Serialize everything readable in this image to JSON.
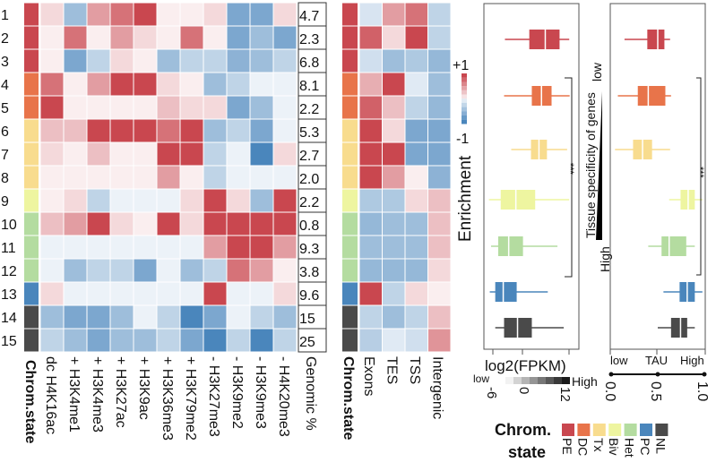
{
  "chart_data": [
    {
      "type": "heatmap",
      "row_labels": [
        "1",
        "2",
        "3",
        "4",
        "5",
        "6",
        "7",
        "8",
        "9",
        "10",
        "11",
        "12",
        "13",
        "14",
        "15"
      ],
      "row_states": [
        "PE",
        "PE",
        "PE",
        "DC",
        "DC",
        "Tx",
        "Tx",
        "Tx",
        "Biv",
        "Het",
        "Het",
        "Het",
        "PC",
        "NL",
        "NL"
      ],
      "column_header": "Chrom.state",
      "columns": [
        "dc H4K16ac",
        "+ H3K4me1",
        "+ H3K4me3",
        "+ H3K27ac",
        "+ H3K9ac",
        "+ H3K36me3",
        "+ H3K79me2",
        "- H3K27me3",
        "- H3K9me2",
        "- H3K9me3",
        "- H4K20me3"
      ],
      "values": [
        [
          0.15,
          -0.5,
          0.5,
          0.75,
          1,
          0.03,
          0.03,
          0.15,
          -0.7,
          -0.7,
          0.15
        ],
        [
          0.03,
          0.75,
          0.03,
          0.5,
          0.15,
          0.03,
          0.75,
          0.03,
          -0.7,
          -0.5,
          -0.7
        ],
        [
          0.03,
          -0.7,
          -0.3,
          0.15,
          0.03,
          -0.5,
          -0.3,
          -0.3,
          -0.6,
          -0.5,
          -0.3
        ],
        [
          0.75,
          0.03,
          0.5,
          1,
          1,
          0.15,
          0.03,
          -0.5,
          -0.3,
          -0.03,
          -0.03
        ],
        [
          1,
          0.03,
          0.03,
          0.03,
          0.03,
          0.3,
          0.15,
          0.15,
          -0.7,
          -0.5,
          -0.03
        ],
        [
          0.3,
          0.3,
          1,
          1,
          1,
          0.75,
          1,
          -0.5,
          -0.3,
          -0.7,
          -0.03
        ],
        [
          0.15,
          0.03,
          0.3,
          0.03,
          0.03,
          1,
          1,
          -0.3,
          -0.03,
          -1,
          0.15
        ],
        [
          0.03,
          0.03,
          0.03,
          0.03,
          0.03,
          0.5,
          0.03,
          -0.3,
          -0.03,
          -0.03,
          -0.03
        ],
        [
          0.03,
          0.15,
          -0.3,
          -0.03,
          -0.03,
          -0.03,
          0.15,
          1,
          0.15,
          -0.5,
          1
        ],
        [
          0.3,
          0.5,
          1,
          0.15,
          0.03,
          1,
          0.15,
          1,
          1,
          1,
          1
        ],
        [
          -0.03,
          -0.03,
          -0.03,
          -0.03,
          -0.03,
          -0.03,
          -0.03,
          0.5,
          1,
          1,
          0.5
        ],
        [
          -0.03,
          -0.5,
          -0.3,
          -0.3,
          -0.7,
          -0.03,
          -0.5,
          -0.3,
          0.75,
          0.5,
          0.03
        ],
        [
          0.15,
          -0.03,
          -0.03,
          -0.03,
          -0.03,
          -0.03,
          -0.03,
          1,
          -0.03,
          -0.03,
          0.15
        ],
        [
          -0.5,
          -0.7,
          -0.7,
          -0.5,
          -0.03,
          -0.3,
          -1,
          -0.7,
          -0.03,
          -0.3,
          -0.5
        ],
        [
          -0.3,
          -0.5,
          -0.7,
          -0.5,
          -0.5,
          -0.3,
          -0.7,
          -1,
          -0.3,
          -1,
          -0.3
        ]
      ],
      "genomic_label": "Genomic %",
      "genomic_percent": [
        "4.7",
        "2.3",
        "6.8",
        "8.1",
        "2.2",
        "5.3",
        "2.7",
        "2.0",
        "2.2",
        "0.8",
        "9.3",
        "3.8",
        "9.6",
        "15",
        "25"
      ]
    },
    {
      "type": "heatmap",
      "column_header": "Chrom.state",
      "columns": [
        "Exons",
        "TES",
        "TSS",
        "Intergenic"
      ],
      "values": [
        [
          -0.15,
          0.5,
          0.75,
          -0.3
        ],
        [
          0.85,
          0.15,
          1,
          -0.3
        ],
        [
          -0.2,
          -0.5,
          -0.4,
          -0.55
        ],
        [
          0.4,
          1,
          -0.1,
          -0.5
        ],
        [
          0.85,
          0.3,
          -0.3,
          -0.55
        ],
        [
          1,
          0.15,
          -0.7,
          -0.7
        ],
        [
          1,
          1,
          -0.7,
          -0.7
        ],
        [
          1,
          0.5,
          0.03,
          -0.6
        ],
        [
          -0.4,
          -0.4,
          0.15,
          0.3
        ],
        [
          -0.55,
          -0.5,
          -0.5,
          0.3
        ],
        [
          -0.5,
          -0.5,
          -0.5,
          0.3
        ],
        [
          -0.55,
          -0.55,
          -0.55,
          0.15
        ],
        [
          1,
          -0.3,
          0.15,
          0.03
        ],
        [
          -0.3,
          -0.5,
          -0.3,
          0.3
        ],
        [
          -0.35,
          -0.1,
          -0.2,
          0.55
        ]
      ],
      "colorbar": {
        "title": "Enrichment",
        "max_label": "+1",
        "min_label": "-1",
        "range": [
          -1,
          1
        ]
      }
    },
    {
      "type": "boxplot",
      "xlabel": "log2(FPKM)",
      "xlim": [
        -6,
        12
      ],
      "ticks": [
        "-6",
        "0",
        "12"
      ],
      "legend_low": "low",
      "legend_high": "High",
      "categories": [
        "PE",
        "DC",
        "Tx",
        "Biv",
        "Het",
        "PC",
        "NL"
      ],
      "boxes": [
        {
          "min": -2.8,
          "q1": 3.0,
          "median": 6.8,
          "q3": 10.2,
          "max": 12.5
        },
        {
          "min": -3.0,
          "q1": 3.6,
          "median": 5.9,
          "q3": 8.3,
          "max": 12.6
        },
        {
          "min": -1.3,
          "q1": 3.4,
          "median": 5.3,
          "q3": 7.2,
          "max": 12.0
        },
        {
          "min": -6.6,
          "q1": -3.8,
          "median": -0.2,
          "q3": 4.4,
          "max": 12.5
        },
        {
          "min": -6.1,
          "q1": -4.4,
          "median": -1.9,
          "q3": 1.5,
          "max": 9.7
        },
        {
          "min": -6.4,
          "q1": -5.1,
          "median": -3.2,
          "q3": 0.0,
          "max": 7.4
        },
        {
          "min": -5.1,
          "q1": -3.0,
          "median": 0.2,
          "q3": 3.6,
          "max": 11.2
        }
      ],
      "significance": {
        "label": "***",
        "from": "DC",
        "to": "Het"
      }
    },
    {
      "type": "boxplot",
      "xlabel": "TAU",
      "xlim": [
        0,
        1
      ],
      "ticks": [
        "0.0",
        "0.5",
        "1.0"
      ],
      "axis_low": "low",
      "axis_high": "High",
      "side_label": "Tissue specificity of genes",
      "side_low": "low",
      "side_high": "High",
      "categories": [
        "PE",
        "DC",
        "Tx",
        "Biv",
        "Het",
        "PC",
        "NL"
      ],
      "boxes": [
        {
          "min": 0.15,
          "q1": 0.39,
          "median": 0.5,
          "q3": 0.57,
          "max": 0.63
        },
        {
          "min": 0.08,
          "q1": 0.29,
          "median": 0.4,
          "q3": 0.58,
          "max": 0.64
        },
        {
          "min": 0.05,
          "q1": 0.24,
          "median": 0.34,
          "q3": 0.44,
          "max": 0.63
        },
        {
          "min": 0.62,
          "q1": 0.74,
          "median": 0.82,
          "q3": 0.89,
          "max": 0.97
        },
        {
          "min": 0.4,
          "q1": 0.54,
          "median": 0.62,
          "q3": 0.8,
          "max": 0.89
        },
        {
          "min": 0.56,
          "q1": 0.73,
          "median": 0.81,
          "q3": 0.89,
          "max": 0.97
        },
        {
          "min": 0.5,
          "q1": 0.64,
          "median": 0.74,
          "q3": 0.81,
          "max": 0.89
        }
      ],
      "significance": {
        "label": "***",
        "from": "DC",
        "to": "Het"
      }
    }
  ],
  "state_legend": {
    "title_line1": "Chrom.",
    "title_line2": "state",
    "states": [
      {
        "name": "PE",
        "color": "#c9474f"
      },
      {
        "name": "DC",
        "color": "#e8744a"
      },
      {
        "name": "Tx",
        "color": "#f8dc8e"
      },
      {
        "name": "Biv",
        "color": "#eef5a0"
      },
      {
        "name": "Het",
        "color": "#b4dca0"
      },
      {
        "name": "PC",
        "color": "#4a86bc"
      },
      {
        "name": "NL",
        "color": "#4a4a4a"
      }
    ]
  },
  "colors": {
    "high": "#c9474f",
    "low": "#4a86bc"
  }
}
